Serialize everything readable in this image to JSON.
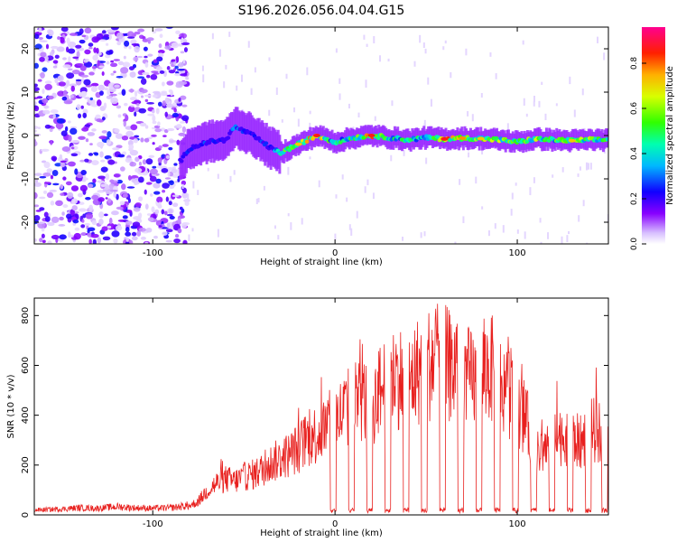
{
  "figure_title": "S196.2026.056.04.04.G15",
  "chart_data": [
    {
      "type": "heatmap",
      "title": "S196.2026.056.04.04.G15",
      "xlabel": "Height of straight line (km)",
      "ylabel": "Frequency (Hz)",
      "xlim": [
        -165,
        150
      ],
      "ylim": [
        -25,
        25
      ],
      "xticks": [
        -100,
        0,
        100
      ],
      "xtick_labels": [
        "-100",
        "0",
        "100"
      ],
      "yticks": [
        -20,
        -10,
        0,
        10,
        20
      ],
      "ytick_labels": [
        "-20",
        "-10",
        "0",
        "10",
        "20"
      ],
      "colorbar": {
        "label": "Normalized spectral amplitude",
        "range": [
          0,
          0.96
        ],
        "ticks": [
          0,
          0.2,
          0.4,
          0.6,
          0.8
        ],
        "tick_labels": [
          "0.0",
          "0.2",
          "0.4",
          "0.6",
          "0.8"
        ],
        "colormap": [
          "#ffffff",
          "#8800ff",
          "#0000ff",
          "#00ccff",
          "#00ff66",
          "#66ff00",
          "#ffff00",
          "#ff8800",
          "#ff0000",
          "#ff0080"
        ]
      },
      "ridge_trace": {
        "description": "dominant Doppler frequency vs height",
        "x": [
          -85,
          -80,
          -70,
          -60,
          -55,
          -45,
          -35,
          -30,
          -25,
          -20,
          -10,
          0,
          10,
          20,
          30,
          40,
          50,
          60,
          70,
          80,
          90,
          100,
          110,
          120,
          130,
          140,
          150
        ],
        "y": [
          -6,
          -3,
          -1.5,
          -1,
          2,
          0,
          -3,
          -4,
          -3,
          -2,
          0,
          -1.5,
          -0.5,
          0,
          -0.5,
          -1,
          -0.5,
          -0.8,
          -0.6,
          -0.7,
          -1,
          -1.5,
          -0.8,
          -1,
          -1.2,
          -1,
          -1
        ],
        "peak_amplitude": [
          0.2,
          0.3,
          0.3,
          0.25,
          0.35,
          0.3,
          0.3,
          0.6,
          0.7,
          0.75,
          0.9,
          0.5,
          0.6,
          0.9,
          0.6,
          0.55,
          0.5,
          0.9,
          0.8,
          0.75,
          0.7,
          0.6,
          0.7,
          0.65,
          0.75,
          0.7,
          0.6
        ]
      },
      "noise_region_x": [
        -165,
        -85
      ]
    },
    {
      "type": "line",
      "xlabel": "Height of straight line (km)",
      "ylabel": "SNR (10 * v/v)",
      "xlim": [
        -165,
        150
      ],
      "ylim": [
        0,
        870
      ],
      "xticks": [
        -100,
        0,
        100
      ],
      "xtick_labels": [
        "-100",
        "0",
        "100"
      ],
      "yticks": [
        0,
        200,
        400,
        600,
        800
      ],
      "ytick_labels": [
        "0",
        "200",
        "400",
        "600",
        "800"
      ],
      "series": [
        {
          "name": "SNR",
          "color": "#e8201e",
          "x": [
            -165,
            -150,
            -140,
            -130,
            -120,
            -110,
            -100,
            -90,
            -80,
            -75,
            -70,
            -65,
            -60,
            -55,
            -50,
            -45,
            -40,
            -35,
            -30,
            -25,
            -20,
            -15,
            -10,
            -5,
            0,
            5,
            10,
            15,
            20,
            25,
            30,
            35,
            40,
            45,
            50,
            55,
            60,
            65,
            70,
            75,
            80,
            85,
            90,
            95,
            100,
            105,
            110,
            115,
            120,
            125,
            130,
            135,
            140,
            145,
            150
          ],
          "y": [
            20,
            25,
            30,
            28,
            35,
            30,
            28,
            30,
            40,
            60,
            110,
            140,
            160,
            150,
            170,
            180,
            200,
            230,
            250,
            270,
            300,
            340,
            360,
            390,
            420,
            460,
            500,
            520,
            480,
            560,
            600,
            620,
            580,
            640,
            660,
            700,
            680,
            650,
            620,
            600,
            630,
            660,
            590,
            560,
            500,
            420,
            260,
            300,
            330,
            360,
            340,
            320,
            380,
            370,
            360
          ]
        }
      ],
      "dropouts_x": [
        -1,
        9,
        19,
        29,
        39,
        49,
        59,
        69,
        79,
        89,
        99,
        109,
        119,
        129,
        139,
        148
      ]
    }
  ]
}
